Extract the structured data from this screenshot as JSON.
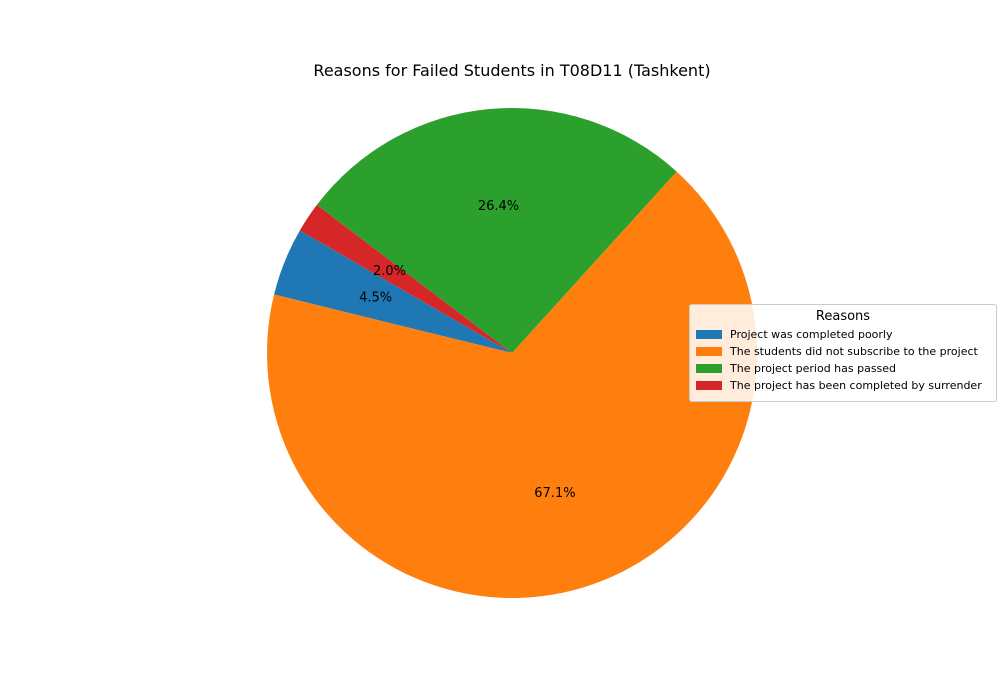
{
  "chart_data": {
    "type": "pie",
    "title": "Reasons for Failed Students in T08D11 (Tashkent)",
    "legend_title": "Reasons",
    "legend_position": "center-right",
    "start_angle_deg": 150,
    "slices": [
      {
        "label": "Project was completed poorly",
        "value": 4.5,
        "pct_label": "4.5%",
        "color": "#1f77b4"
      },
      {
        "label": "The students did not subscribe to the project",
        "value": 67.1,
        "pct_label": "67.1%",
        "color": "#ff7f0e"
      },
      {
        "label": "The project period has passed",
        "value": 26.4,
        "pct_label": "26.4%",
        "color": "#2ca02c"
      },
      {
        "label": "The project has been completed by surrender",
        "value": 2.0,
        "pct_label": "2.0%",
        "color": "#d62728"
      }
    ]
  }
}
